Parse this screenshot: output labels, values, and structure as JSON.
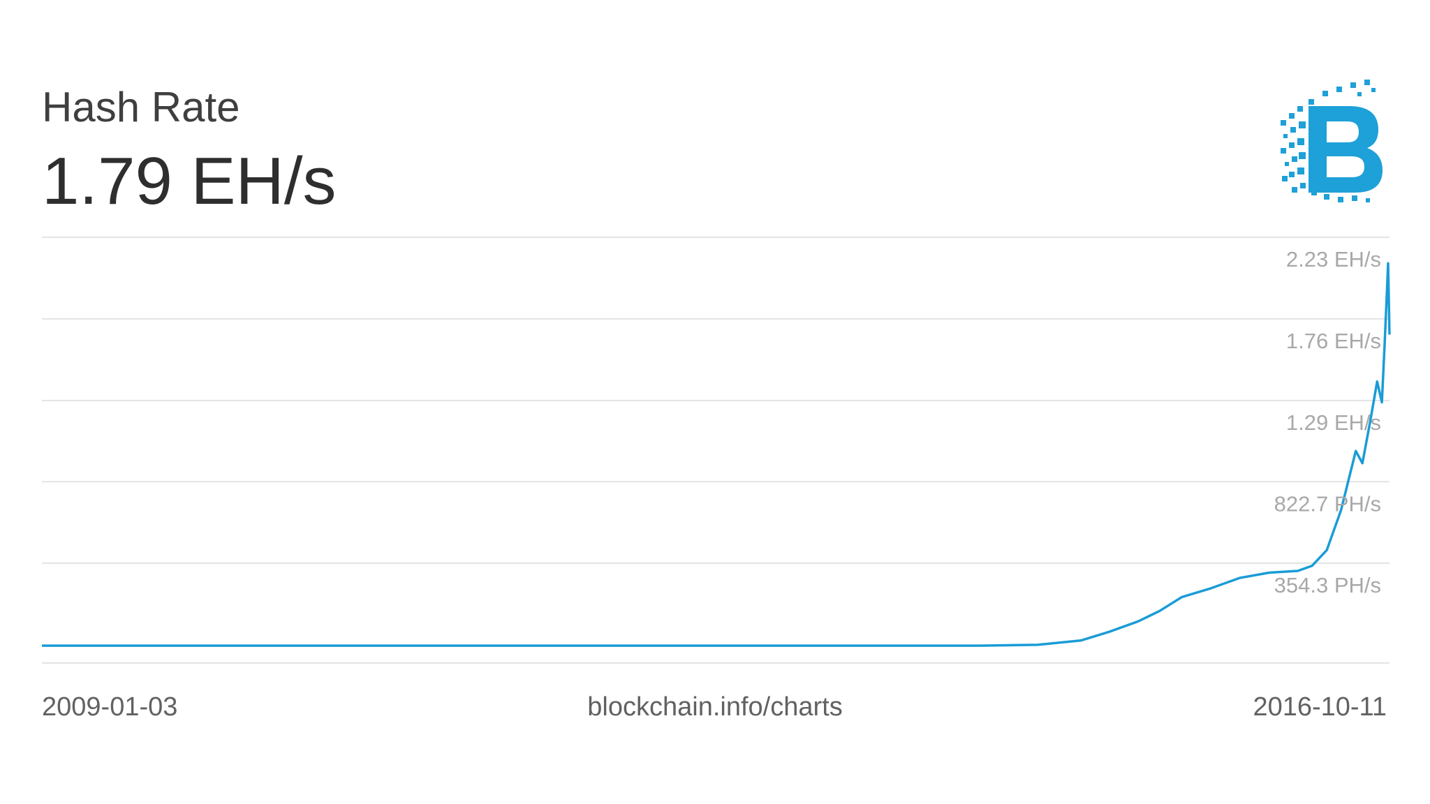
{
  "header": {
    "title": "Hash Rate",
    "current_value": "1.79 EH/s"
  },
  "logo": {
    "icon": "blockchain-bitcoin-logo-icon",
    "color": "#1ea0d8"
  },
  "footer": {
    "start_date": "2009-01-03",
    "source": "blockchain.info/charts",
    "end_date": "2016-10-11"
  },
  "colors": {
    "line": "#1a9cd6",
    "grid": "#e3e3e3",
    "tick_text": "#a8a8a8"
  },
  "chart_data": {
    "type": "line",
    "title": "Hash Rate",
    "xlabel": "",
    "ylabel": "",
    "x_range": [
      "2009-01-03",
      "2016-10-11"
    ],
    "ylim_EHs": [
      -0.1,
      2.35
    ],
    "grid": true,
    "y_tick_labels": [
      "2.23 EH/s",
      "1.76 EH/s",
      "1.29 EH/s",
      "822.7 PH/s",
      "354.3 PH/s"
    ],
    "y_tick_values_EHs": [
      2.23,
      1.76,
      1.29,
      0.8227,
      0.3543
    ],
    "series": [
      {
        "color": "#1a9cd6",
        "points": [
          [
            "2009-01-03",
            0.0
          ],
          [
            "2012-06-01",
            0.0
          ],
          [
            "2013-06-01",
            0.0
          ],
          [
            "2014-01-01",
            0.0
          ],
          [
            "2014-06-01",
            0.0
          ],
          [
            "2014-10-01",
            0.005
          ],
          [
            "2015-01-01",
            0.03
          ],
          [
            "2015-03-01",
            0.08
          ],
          [
            "2015-05-01",
            0.14
          ],
          [
            "2015-06-15",
            0.2
          ],
          [
            "2015-08-01",
            0.28
          ],
          [
            "2015-10-01",
            0.33
          ],
          [
            "2015-12-01",
            0.39
          ],
          [
            "2016-02-01",
            0.42
          ],
          [
            "2016-04-01",
            0.43
          ],
          [
            "2016-05-01",
            0.46
          ],
          [
            "2016-06-01",
            0.55
          ],
          [
            "2016-07-01",
            0.78
          ],
          [
            "2016-08-01",
            1.12
          ],
          [
            "2016-08-15",
            1.05
          ],
          [
            "2016-09-01",
            1.3
          ],
          [
            "2016-09-15",
            1.52
          ],
          [
            "2016-09-25",
            1.4
          ],
          [
            "2016-10-01",
            1.75
          ],
          [
            "2016-10-05",
            2.0
          ],
          [
            "2016-10-08",
            2.2
          ],
          [
            "2016-10-11",
            1.79
          ]
        ]
      }
    ]
  }
}
